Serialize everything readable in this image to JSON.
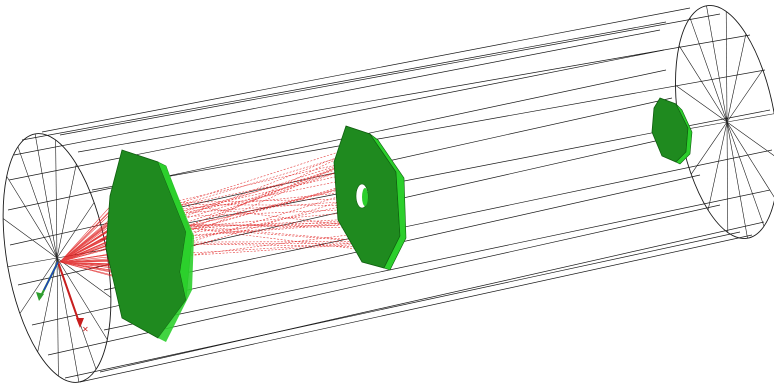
{
  "viewport": {
    "background": "#ffffff"
  },
  "scene": {
    "cylinder": {
      "wire_color": "#1a1a1a",
      "radial_segments": 16
    },
    "plates": [
      {
        "id": "large-plate",
        "color": "#1f8a1f",
        "edge_color": "#2ccf2c"
      },
      {
        "id": "middle-plate",
        "color": "#1f8a1f",
        "edge_color": "#2ccf2c"
      },
      {
        "id": "small-plate",
        "color": "#1f8a1f",
        "edge_color": "#2ccf2c"
      }
    ],
    "rays": {
      "color": "#e02020"
    }
  },
  "axes": {
    "x_color": "#c81e1e",
    "y_color": "#2e9e2e",
    "z_color": "#1f3fbf"
  }
}
